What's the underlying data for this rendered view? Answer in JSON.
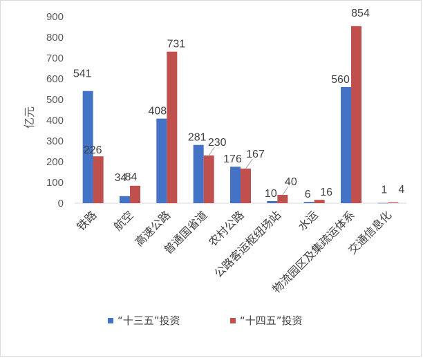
{
  "chart_data": {
    "type": "bar",
    "ylabel": "亿元",
    "ylim": [
      0,
      900
    ],
    "yticks": [
      0,
      100,
      200,
      300,
      400,
      500,
      600,
      700,
      800,
      900
    ],
    "grid": false,
    "legend_position": "bottom",
    "categories": [
      "铁路",
      "航空",
      "高速公路",
      "普通国省道",
      "农村公路",
      "公路客运枢纽场站",
      "水运",
      "物流园区及集疏运体系",
      "交通信息化"
    ],
    "series": [
      {
        "name": "“十三五”投资",
        "color": "#4472c4",
        "values": [
          541,
          34,
          408,
          281,
          176,
          10,
          6,
          560,
          1
        ]
      },
      {
        "name": "“十四五”投资",
        "color": "#c0504d",
        "values": [
          226,
          84,
          731,
          230,
          167,
          40,
          16,
          854,
          4
        ]
      }
    ]
  }
}
